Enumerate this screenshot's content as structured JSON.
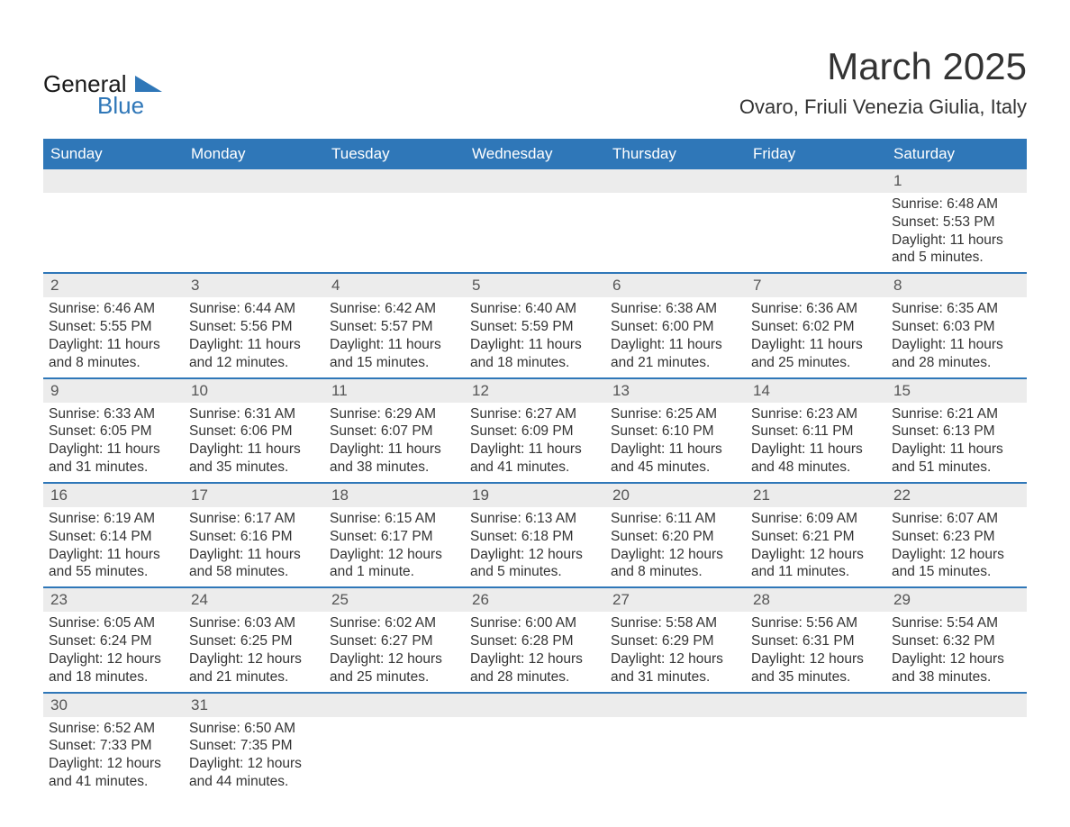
{
  "brand": {
    "name_top": "General",
    "name_bottom": "Blue"
  },
  "title": "March 2025",
  "location": "Ovaro, Friuli Venezia Giulia, Italy",
  "colors": {
    "header_bg": "#2f77b8",
    "header_text": "#ffffff",
    "strip_bg": "#ececec",
    "border": "#2f77b8",
    "text": "#333333",
    "logo_dark": "#1a1a1a",
    "logo_accent": "#2f77b8"
  },
  "typography": {
    "title_fontsize": 42,
    "location_fontsize": 22,
    "dow_fontsize": 17,
    "daynum_fontsize": 17,
    "body_fontsize": 15.5
  },
  "days_of_week": [
    "Sunday",
    "Monday",
    "Tuesday",
    "Wednesday",
    "Thursday",
    "Friday",
    "Saturday"
  ],
  "weeks": [
    [
      null,
      null,
      null,
      null,
      null,
      null,
      {
        "n": "1",
        "sunrise": "6:48 AM",
        "sunset": "5:53 PM",
        "daylight": "11 hours and 5 minutes."
      }
    ],
    [
      {
        "n": "2",
        "sunrise": "6:46 AM",
        "sunset": "5:55 PM",
        "daylight": "11 hours and 8 minutes."
      },
      {
        "n": "3",
        "sunrise": "6:44 AM",
        "sunset": "5:56 PM",
        "daylight": "11 hours and 12 minutes."
      },
      {
        "n": "4",
        "sunrise": "6:42 AM",
        "sunset": "5:57 PM",
        "daylight": "11 hours and 15 minutes."
      },
      {
        "n": "5",
        "sunrise": "6:40 AM",
        "sunset": "5:59 PM",
        "daylight": "11 hours and 18 minutes."
      },
      {
        "n": "6",
        "sunrise": "6:38 AM",
        "sunset": "6:00 PM",
        "daylight": "11 hours and 21 minutes."
      },
      {
        "n": "7",
        "sunrise": "6:36 AM",
        "sunset": "6:02 PM",
        "daylight": "11 hours and 25 minutes."
      },
      {
        "n": "8",
        "sunrise": "6:35 AM",
        "sunset": "6:03 PM",
        "daylight": "11 hours and 28 minutes."
      }
    ],
    [
      {
        "n": "9",
        "sunrise": "6:33 AM",
        "sunset": "6:05 PM",
        "daylight": "11 hours and 31 minutes."
      },
      {
        "n": "10",
        "sunrise": "6:31 AM",
        "sunset": "6:06 PM",
        "daylight": "11 hours and 35 minutes."
      },
      {
        "n": "11",
        "sunrise": "6:29 AM",
        "sunset": "6:07 PM",
        "daylight": "11 hours and 38 minutes."
      },
      {
        "n": "12",
        "sunrise": "6:27 AM",
        "sunset": "6:09 PM",
        "daylight": "11 hours and 41 minutes."
      },
      {
        "n": "13",
        "sunrise": "6:25 AM",
        "sunset": "6:10 PM",
        "daylight": "11 hours and 45 minutes."
      },
      {
        "n": "14",
        "sunrise": "6:23 AM",
        "sunset": "6:11 PM",
        "daylight": "11 hours and 48 minutes."
      },
      {
        "n": "15",
        "sunrise": "6:21 AM",
        "sunset": "6:13 PM",
        "daylight": "11 hours and 51 minutes."
      }
    ],
    [
      {
        "n": "16",
        "sunrise": "6:19 AM",
        "sunset": "6:14 PM",
        "daylight": "11 hours and 55 minutes."
      },
      {
        "n": "17",
        "sunrise": "6:17 AM",
        "sunset": "6:16 PM",
        "daylight": "11 hours and 58 minutes."
      },
      {
        "n": "18",
        "sunrise": "6:15 AM",
        "sunset": "6:17 PM",
        "daylight": "12 hours and 1 minute."
      },
      {
        "n": "19",
        "sunrise": "6:13 AM",
        "sunset": "6:18 PM",
        "daylight": "12 hours and 5 minutes."
      },
      {
        "n": "20",
        "sunrise": "6:11 AM",
        "sunset": "6:20 PM",
        "daylight": "12 hours and 8 minutes."
      },
      {
        "n": "21",
        "sunrise": "6:09 AM",
        "sunset": "6:21 PM",
        "daylight": "12 hours and 11 minutes."
      },
      {
        "n": "22",
        "sunrise": "6:07 AM",
        "sunset": "6:23 PM",
        "daylight": "12 hours and 15 minutes."
      }
    ],
    [
      {
        "n": "23",
        "sunrise": "6:05 AM",
        "sunset": "6:24 PM",
        "daylight": "12 hours and 18 minutes."
      },
      {
        "n": "24",
        "sunrise": "6:03 AM",
        "sunset": "6:25 PM",
        "daylight": "12 hours and 21 minutes."
      },
      {
        "n": "25",
        "sunrise": "6:02 AM",
        "sunset": "6:27 PM",
        "daylight": "12 hours and 25 minutes."
      },
      {
        "n": "26",
        "sunrise": "6:00 AM",
        "sunset": "6:28 PM",
        "daylight": "12 hours and 28 minutes."
      },
      {
        "n": "27",
        "sunrise": "5:58 AM",
        "sunset": "6:29 PM",
        "daylight": "12 hours and 31 minutes."
      },
      {
        "n": "28",
        "sunrise": "5:56 AM",
        "sunset": "6:31 PM",
        "daylight": "12 hours and 35 minutes."
      },
      {
        "n": "29",
        "sunrise": "5:54 AM",
        "sunset": "6:32 PM",
        "daylight": "12 hours and 38 minutes."
      }
    ],
    [
      {
        "n": "30",
        "sunrise": "6:52 AM",
        "sunset": "7:33 PM",
        "daylight": "12 hours and 41 minutes."
      },
      {
        "n": "31",
        "sunrise": "6:50 AM",
        "sunset": "7:35 PM",
        "daylight": "12 hours and 44 minutes."
      },
      null,
      null,
      null,
      null,
      null
    ]
  ],
  "labels": {
    "sunrise": "Sunrise: ",
    "sunset": "Sunset: ",
    "daylight": "Daylight: "
  }
}
